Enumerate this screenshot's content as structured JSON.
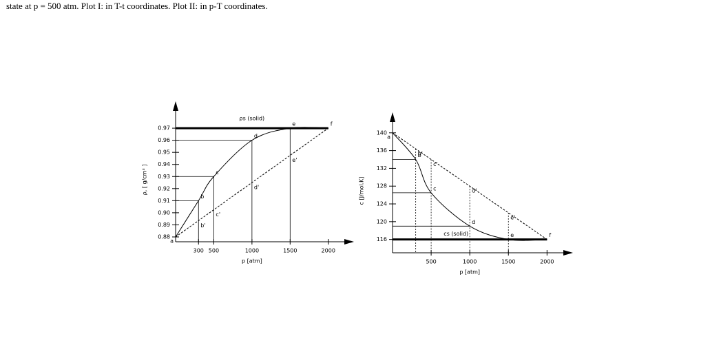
{
  "caption": "state at p = 500 atm. Plot I: in T-t coordinates. Plot II: in p-T coordinates.",
  "chart_data": [
    {
      "type": "line",
      "xlabel": "p [atm]",
      "ylabel": "ρ, [ g/cm³ ]",
      "x": [
        0,
        300,
        500,
        1000,
        1500,
        2000
      ],
      "xlim": [
        0,
        2300
      ],
      "xticks": [
        300,
        500,
        1000,
        1500,
        2000
      ],
      "ylim": [
        0.876,
        0.99
      ],
      "yticks": [
        0.88,
        0.89,
        {
          "value": 0.9,
          "label": "0.90"
        },
        0.91,
        0.92,
        0.93,
        0.94,
        0.95,
        0.96,
        0.97
      ],
      "solid_line": {
        "value": 0.97,
        "label": "ρs (solid)"
      },
      "series": [
        {
          "values": [
            0.88,
            0.91,
            0.93,
            0.96,
            0.97,
            0.97
          ],
          "point_labels": [
            "a",
            "b",
            "c",
            "d",
            "e",
            "f"
          ],
          "smooth": true,
          "drop_lines": "solid"
        },
        {
          "values": [
            0.88,
            0.8935,
            0.9025,
            0.925,
            0.9475,
            0.97
          ],
          "point_labels": [
            null,
            "b'",
            "c'",
            "d'",
            "e'",
            null
          ],
          "dashed": true
        }
      ]
    },
    {
      "type": "line",
      "xlabel": "p [atm]",
      "ylabel": "c [J/mol.K]",
      "x": [
        0,
        300,
        500,
        1000,
        1500,
        2000
      ],
      "xlim": [
        0,
        2300
      ],
      "xticks": [
        500,
        1000,
        1500,
        2000
      ],
      "ylim": [
        113,
        144
      ],
      "yticks": [
        116,
        120,
        124,
        128,
        132,
        136,
        140
      ],
      "solid_line": {
        "value": 116,
        "label": "cs (solid)"
      },
      "series": [
        {
          "values": [
            140,
            134,
            126.5,
            119,
            116,
            116
          ],
          "point_labels": [
            "a",
            "b",
            "c",
            "d",
            "e",
            "f"
          ],
          "smooth": true,
          "drop_lines": "horizontal"
        },
        {
          "values": [
            140,
            136.4,
            134,
            128,
            122,
            116
          ],
          "point_labels": [
            null,
            "b'",
            "c'",
            "d'",
            "e'",
            null
          ],
          "dashed": true,
          "drop_lines": "dotted"
        }
      ]
    }
  ]
}
